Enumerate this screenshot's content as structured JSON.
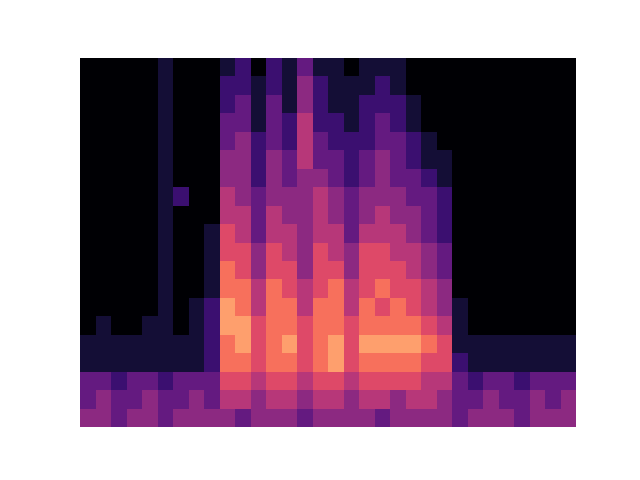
{
  "chart_data": {
    "type": "heatmap",
    "cells": [
      [
        4,
        4,
        3,
        4,
        4,
        3,
        4,
        4,
        4,
        4,
        3,
        4,
        4,
        4,
        3,
        4,
        4,
        4,
        4,
        3,
        4,
        4,
        4,
        4,
        3,
        4,
        4,
        4,
        3,
        4,
        4,
        4
      ],
      [
        3,
        4,
        3,
        3,
        4,
        3,
        3,
        4,
        3,
        5,
        5,
        4,
        5,
        5,
        4,
        5,
        5,
        4,
        5,
        5,
        4,
        5,
        5,
        4,
        3,
        3,
        4,
        3,
        3,
        4,
        3,
        4
      ],
      [
        3,
        3,
        2,
        3,
        3,
        2,
        3,
        3,
        3,
        6,
        6,
        5,
        6,
        6,
        5,
        6,
        6,
        5,
        6,
        6,
        6,
        6,
        5,
        5,
        3,
        2,
        3,
        3,
        2,
        3,
        3,
        3
      ],
      [
        1,
        1,
        1,
        1,
        1,
        1,
        1,
        1,
        2,
        7,
        7,
        6,
        7,
        7,
        6,
        7,
        8,
        6,
        7,
        7,
        7,
        7,
        6,
        6,
        2,
        1,
        1,
        1,
        1,
        1,
        1,
        1
      ],
      [
        1,
        1,
        1,
        1,
        1,
        1,
        1,
        1,
        2,
        7,
        8,
        6,
        7,
        8,
        6,
        7,
        8,
        6,
        8,
        8,
        8,
        8,
        7,
        6,
        1,
        1,
        1,
        1,
        1,
        1,
        1,
        1
      ],
      [
        0,
        1,
        0,
        0,
        1,
        1,
        0,
        1,
        2,
        8,
        8,
        6,
        7,
        7,
        6,
        7,
        7,
        6,
        7,
        7,
        7,
        7,
        6,
        5,
        1,
        0,
        0,
        0,
        0,
        0,
        0,
        0
      ],
      [
        0,
        0,
        0,
        0,
        0,
        1,
        0,
        1,
        2,
        8,
        7,
        5,
        7,
        7,
        5,
        7,
        7,
        5,
        7,
        6,
        7,
        6,
        5,
        4,
        1,
        0,
        0,
        0,
        0,
        0,
        0,
        0
      ],
      [
        0,
        0,
        0,
        0,
        0,
        1,
        0,
        0,
        1,
        7,
        7,
        5,
        7,
        6,
        5,
        6,
        7,
        5,
        6,
        7,
        6,
        6,
        5,
        4,
        0,
        0,
        0,
        0,
        0,
        0,
        0,
        0
      ],
      [
        0,
        0,
        0,
        0,
        0,
        1,
        0,
        0,
        1,
        7,
        6,
        4,
        6,
        6,
        4,
        6,
        6,
        4,
        6,
        6,
        6,
        5,
        4,
        3,
        0,
        0,
        0,
        0,
        0,
        0,
        0,
        0
      ],
      [
        0,
        0,
        0,
        0,
        0,
        1,
        0,
        0,
        1,
        6,
        6,
        4,
        6,
        5,
        4,
        6,
        5,
        4,
        6,
        6,
        5,
        5,
        4,
        3,
        0,
        0,
        0,
        0,
        0,
        0,
        0,
        0
      ],
      [
        0,
        0,
        0,
        0,
        0,
        1,
        0,
        0,
        1,
        6,
        5,
        3,
        5,
        5,
        4,
        5,
        5,
        3,
        5,
        5,
        5,
        4,
        3,
        2,
        0,
        0,
        0,
        0,
        0,
        0,
        0,
        0
      ],
      [
        0,
        0,
        0,
        0,
        0,
        1,
        0,
        0,
        0,
        5,
        5,
        3,
        5,
        4,
        4,
        5,
        4,
        3,
        4,
        5,
        4,
        4,
        3,
        2,
        0,
        0,
        0,
        0,
        0,
        0,
        0,
        0
      ],
      [
        0,
        0,
        0,
        0,
        0,
        1,
        2,
        0,
        0,
        5,
        4,
        3,
        4,
        4,
        4,
        5,
        4,
        3,
        4,
        4,
        4,
        3,
        3,
        2,
        0,
        0,
        0,
        0,
        0,
        0,
        0,
        0
      ],
      [
        0,
        0,
        0,
        0,
        0,
        1,
        0,
        0,
        0,
        4,
        4,
        2,
        4,
        3,
        4,
        4,
        3,
        2,
        3,
        4,
        3,
        3,
        2,
        1,
        0,
        0,
        0,
        0,
        0,
        0,
        0,
        0
      ],
      [
        0,
        0,
        0,
        0,
        0,
        1,
        0,
        0,
        0,
        4,
        4,
        2,
        4,
        3,
        5,
        3,
        3,
        2,
        3,
        4,
        3,
        2,
        1,
        1,
        0,
        0,
        0,
        0,
        0,
        0,
        0,
        0
      ],
      [
        0,
        0,
        0,
        0,
        0,
        1,
        0,
        0,
        0,
        3,
        4,
        2,
        3,
        2,
        5,
        3,
        2,
        2,
        2,
        3,
        3,
        2,
        1,
        0,
        0,
        0,
        0,
        0,
        0,
        0,
        0,
        0
      ],
      [
        0,
        0,
        0,
        0,
        0,
        1,
        0,
        0,
        0,
        3,
        3,
        1,
        3,
        2,
        5,
        2,
        2,
        1,
        2,
        3,
        2,
        1,
        0,
        0,
        0,
        0,
        0,
        0,
        0,
        0,
        0,
        0
      ],
      [
        0,
        0,
        0,
        0,
        0,
        1,
        0,
        0,
        0,
        2,
        3,
        1,
        3,
        1,
        4,
        2,
        1,
        1,
        2,
        2,
        2,
        1,
        0,
        0,
        0,
        0,
        0,
        0,
        0,
        0,
        0,
        0
      ],
      [
        0,
        0,
        0,
        0,
        0,
        1,
        0,
        0,
        0,
        2,
        2,
        1,
        2,
        1,
        4,
        2,
        1,
        1,
        1,
        2,
        1,
        0,
        0,
        0,
        0,
        0,
        0,
        0,
        0,
        0,
        0,
        0
      ],
      [
        0,
        0,
        0,
        0,
        0,
        1,
        0,
        0,
        0,
        1,
        2,
        0,
        2,
        1,
        3,
        1,
        1,
        0,
        1,
        1,
        1,
        0,
        0,
        0,
        0,
        0,
        0,
        0,
        0,
        0,
        0,
        0
      ]
    ],
    "zlim": [
      0,
      10
    ],
    "tick_labels": false
  }
}
